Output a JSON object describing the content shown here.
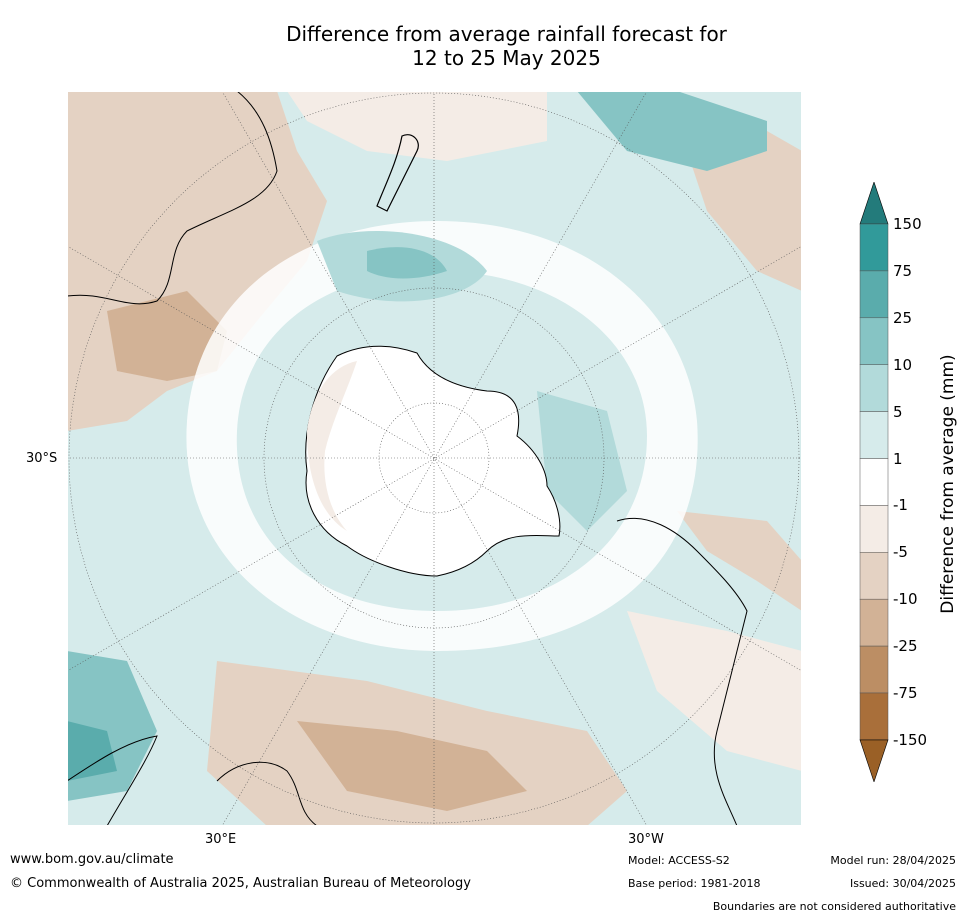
{
  "title_line1": "Difference from average rainfall forecast for",
  "title_line2": "12 to 25 May 2025",
  "map": {
    "projection": "south-polar",
    "labels": {
      "lat_30s": "30°S",
      "lon_30e": "30°E",
      "lon_30w": "30°W"
    },
    "land_color": "#000000",
    "grid": true
  },
  "colorbar": {
    "title": "Difference from average (mm)",
    "ticks": [
      "150",
      "75",
      "25",
      "10",
      "5",
      "1",
      "-1",
      "-5",
      "-10",
      "-25",
      "-75",
      "-150"
    ],
    "colors": [
      "#237b7b",
      "#319a9a",
      "#5aacac",
      "#86c4c4",
      "#b2dada",
      "#d6ebeb",
      "#ffffff",
      "#f4ece6",
      "#e4d2c3",
      "#d2b296",
      "#bc8e64",
      "#a96f3a",
      "#9a6026"
    ],
    "extend": "both"
  },
  "footer": {
    "url": "www.bom.gov.au/climate",
    "copyright": "© Commonwealth of Australia 2025, Australian Bureau of Meteorology",
    "model": "Model: ACCESS-S2",
    "base_period": "Base period: 1981-2018",
    "model_run": "Model run: 28/04/2025",
    "issued": "Issued: 30/04/2025",
    "disclaimer": "Boundaries are not considered authoritative"
  }
}
